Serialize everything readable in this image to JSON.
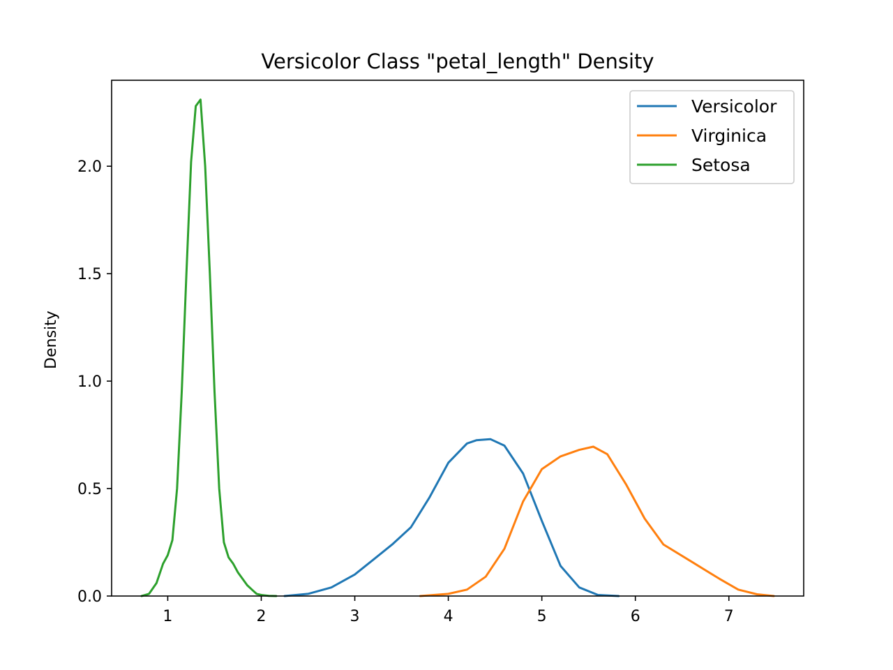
{
  "chart_data": {
    "type": "line",
    "title": "Versicolor Class \"petal_length\" Density",
    "xlabel": "",
    "ylabel": "Density",
    "xlim": [
      0.4,
      7.8
    ],
    "ylim": [
      0.0,
      2.4
    ],
    "x_ticks": [
      1,
      2,
      3,
      4,
      5,
      6,
      7
    ],
    "x_tick_labels": [
      "1",
      "2",
      "3",
      "4",
      "5",
      "6",
      "7"
    ],
    "y_ticks": [
      0.0,
      0.5,
      1.0,
      1.5,
      2.0
    ],
    "y_tick_labels": [
      "0.0",
      "0.5",
      "1.0",
      "1.5",
      "2.0"
    ],
    "grid": false,
    "legend_position": "top-right",
    "series": [
      {
        "name": "Versicolor",
        "color": "#1f77b4",
        "x": [
          2.25,
          2.5,
          2.75,
          3.0,
          3.2,
          3.4,
          3.6,
          3.8,
          4.0,
          4.2,
          4.3,
          4.45,
          4.6,
          4.8,
          5.0,
          5.2,
          5.4,
          5.6,
          5.82
        ],
        "y": [
          0.0,
          0.01,
          0.04,
          0.1,
          0.17,
          0.24,
          0.32,
          0.46,
          0.62,
          0.71,
          0.725,
          0.73,
          0.7,
          0.57,
          0.35,
          0.14,
          0.04,
          0.005,
          0.0
        ]
      },
      {
        "name": "Virginica",
        "color": "#ff7f0e",
        "x": [
          3.7,
          4.0,
          4.2,
          4.4,
          4.6,
          4.8,
          5.0,
          5.2,
          5.4,
          5.55,
          5.7,
          5.9,
          6.1,
          6.3,
          6.6,
          6.9,
          7.1,
          7.3,
          7.48
        ],
        "y": [
          0.0,
          0.01,
          0.03,
          0.09,
          0.22,
          0.44,
          0.59,
          0.65,
          0.68,
          0.695,
          0.66,
          0.52,
          0.36,
          0.24,
          0.16,
          0.08,
          0.03,
          0.008,
          0.0
        ]
      },
      {
        "name": "Setosa",
        "color": "#2ca02c",
        "x": [
          0.72,
          0.8,
          0.88,
          0.95,
          1.0,
          1.05,
          1.1,
          1.15,
          1.2,
          1.25,
          1.3,
          1.35,
          1.4,
          1.45,
          1.5,
          1.55,
          1.6,
          1.65,
          1.7,
          1.75,
          1.8,
          1.85,
          1.9,
          1.95,
          2.0,
          2.08,
          2.16
        ],
        "y": [
          0.0,
          0.01,
          0.06,
          0.15,
          0.19,
          0.26,
          0.5,
          0.95,
          1.5,
          2.02,
          2.28,
          2.31,
          2.0,
          1.5,
          0.95,
          0.5,
          0.25,
          0.18,
          0.15,
          0.11,
          0.08,
          0.05,
          0.03,
          0.01,
          0.005,
          0.001,
          0.0
        ]
      }
    ]
  }
}
